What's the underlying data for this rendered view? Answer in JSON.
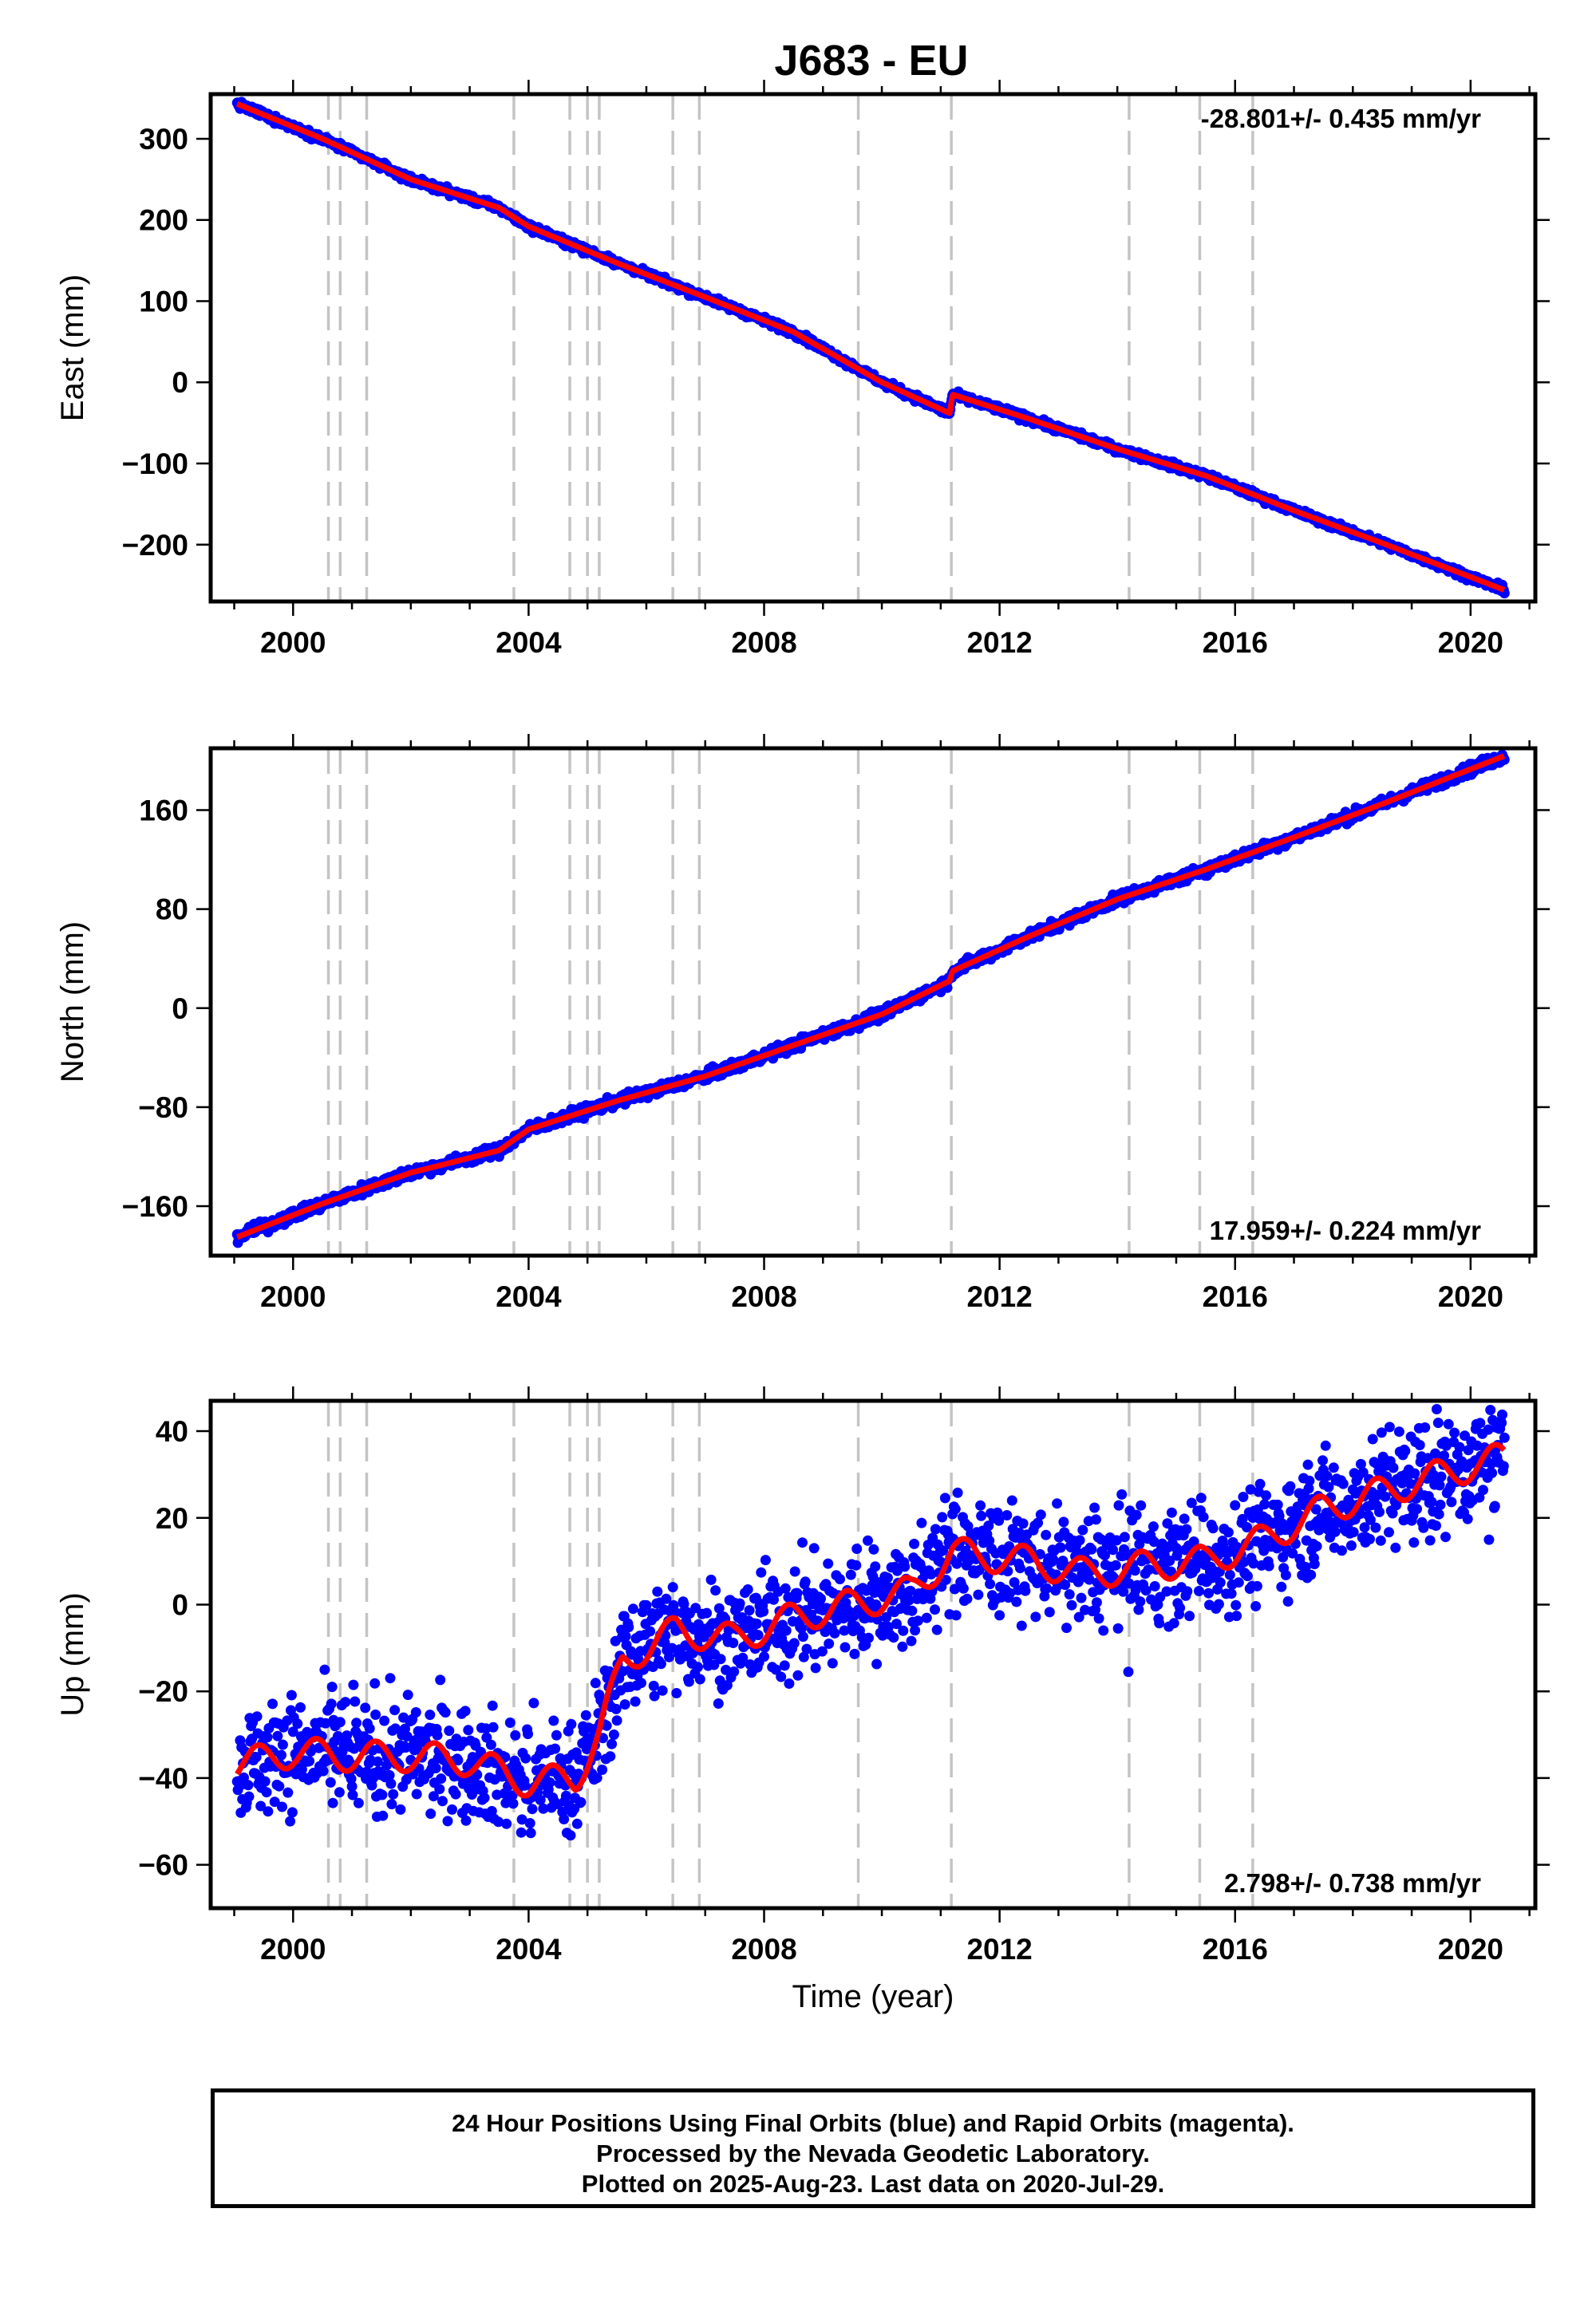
{
  "title": "J683 - EU",
  "footer": {
    "line1": "24 Hour Positions Using Final Orbits (blue) and Rapid Orbits (magenta).",
    "line2": "Processed by the Nevada Geodetic Laboratory.",
    "line3": "Plotted on 2025-Aug-23. Last data on 2020-Jul-29."
  },
  "colors": {
    "data": "#0000ff",
    "model": "#ff0000",
    "events": "#c4c4c4"
  },
  "chart_data": [
    {
      "type": "scatter",
      "ylabel": "East (mm)",
      "xlabel": "",
      "xlim": [
        1998.6,
        2021.1
      ],
      "ylim": [
        -270,
        355
      ],
      "xticks": [
        2000,
        2004,
        2008,
        2012,
        2016,
        2020
      ],
      "yticks": [
        -200,
        -100,
        0,
        100,
        200,
        300
      ],
      "rate_label": "-28.801+/- 0.435 mm/yr",
      "rate_position": "top-right",
      "event_lines_x": [
        2000.6,
        2000.8,
        2001.25,
        2003.75,
        2004.7,
        2005.0,
        2005.2,
        2006.45,
        2006.9,
        2009.6,
        2011.18,
        2014.2,
        2015.4,
        2016.3
      ],
      "series": [
        {
          "style": "points",
          "x": [
            1999.05,
            2000.5,
            2002.0,
            2003.5,
            2004.0,
            2005.5,
            2007.0,
            2008.5,
            2010.0,
            2011.15,
            2011.2,
            2012.5,
            2014.0,
            2015.5,
            2017.0,
            2018.5,
            2020.58
          ],
          "y": [
            343,
            300,
            250,
            215,
            192,
            147,
            105,
            62,
            0,
            -38,
            -15,
            -45,
            -82,
            -115,
            -158,
            -198,
            -256
          ]
        },
        {
          "style": "line",
          "x": [
            1999.05,
            2000.5,
            2002.0,
            2003.5,
            2004.0,
            2005.5,
            2007.0,
            2008.5,
            2010.0,
            2011.15,
            2011.2,
            2012.5,
            2014.0,
            2015.5,
            2017.0,
            2018.5,
            2020.58
          ],
          "y": [
            343,
            300,
            250,
            215,
            192,
            147,
            105,
            62,
            0,
            -38,
            -15,
            -45,
            -82,
            -115,
            -158,
            -198,
            -256
          ]
        }
      ]
    },
    {
      "type": "scatter",
      "ylabel": "North (mm)",
      "xlabel": "",
      "xlim": [
        1998.6,
        2021.1
      ],
      "ylim": [
        -200,
        210
      ],
      "xticks": [
        2000,
        2004,
        2008,
        2012,
        2016,
        2020
      ],
      "yticks": [
        -160,
        -80,
        0,
        80,
        160
      ],
      "rate_label": "17.959+/- 0.224 mm/yr",
      "rate_position": "bottom-right",
      "event_lines_x": [
        2000.6,
        2000.8,
        2001.25,
        2003.75,
        2004.7,
        2005.0,
        2005.2,
        2006.45,
        2006.9,
        2009.6,
        2011.18,
        2014.2,
        2015.4,
        2016.3
      ],
      "series": [
        {
          "style": "points",
          "x": [
            1999.05,
            2000.5,
            2002.0,
            2003.5,
            2004.0,
            2005.5,
            2007.0,
            2008.5,
            2010.0,
            2011.15,
            2011.2,
            2012.5,
            2014.0,
            2015.5,
            2017.0,
            2018.5,
            2020.58
          ],
          "y": [
            -185,
            -158,
            -133,
            -115,
            -98,
            -75,
            -55,
            -30,
            -5,
            22,
            30,
            58,
            88,
            112,
            138,
            165,
            204
          ]
        },
        {
          "style": "line",
          "x": [
            1999.05,
            2000.5,
            2002.0,
            2003.5,
            2004.0,
            2005.5,
            2007.0,
            2008.5,
            2010.0,
            2011.15,
            2011.2,
            2012.5,
            2014.0,
            2015.5,
            2017.0,
            2018.5,
            2020.58
          ],
          "y": [
            -185,
            -158,
            -133,
            -115,
            -98,
            -75,
            -55,
            -30,
            -5,
            22,
            30,
            58,
            88,
            112,
            138,
            165,
            204
          ]
        }
      ]
    },
    {
      "type": "scatter",
      "ylabel": "Up (mm)",
      "xlabel": "Time (year)",
      "xlim": [
        1998.6,
        2021.1
      ],
      "ylim": [
        -70,
        47
      ],
      "xticks": [
        2000,
        2004,
        2008,
        2012,
        2016,
        2020
      ],
      "yticks": [
        -60,
        -40,
        -20,
        0,
        20,
        40
      ],
      "rate_label": "2.798+/- 0.738 mm/yr",
      "rate_position": "bottom-right",
      "event_lines_x": [
        2000.6,
        2000.8,
        2001.25,
        2003.75,
        2004.7,
        2005.0,
        2005.2,
        2006.45,
        2006.9,
        2009.6,
        2011.18,
        2014.2,
        2015.4,
        2016.3
      ],
      "series": [
        {
          "style": "points",
          "x": [
            1999.05,
            2000.0,
            2001.0,
            2002.0,
            2003.0,
            2004.0,
            2004.8,
            2005.2,
            2005.6,
            2006.5,
            2007.5,
            2008.5,
            2009.5,
            2010.5,
            2011.2,
            2012.5,
            2013.5,
            2014.5,
            2015.5,
            2016.5,
            2017.5,
            2018.5,
            2019.5,
            2020.58
          ],
          "y": [
            -37,
            -34,
            -35,
            -35,
            -36,
            -41,
            -40,
            -30,
            -13,
            -6,
            -8,
            -3,
            0,
            3,
            12,
            10,
            7,
            9,
            10,
            15,
            22,
            26,
            30,
            34
          ]
        },
        {
          "style": "line",
          "x": [
            1999.05,
            2000.0,
            2001.0,
            2002.0,
            2003.0,
            2004.0,
            2004.8,
            2005.2,
            2005.6,
            2006.5,
            2007.5,
            2008.5,
            2009.5,
            2010.5,
            2011.2,
            2012.5,
            2013.5,
            2014.5,
            2015.5,
            2016.5,
            2017.5,
            2018.5,
            2019.5,
            2020.58
          ],
          "y": [
            -37,
            -34,
            -35,
            -35,
            -36,
            -41,
            -40,
            -30,
            -13,
            -6,
            -8,
            -3,
            0,
            3,
            12,
            10,
            7,
            9,
            10,
            15,
            22,
            26,
            30,
            34
          ]
        }
      ]
    }
  ]
}
